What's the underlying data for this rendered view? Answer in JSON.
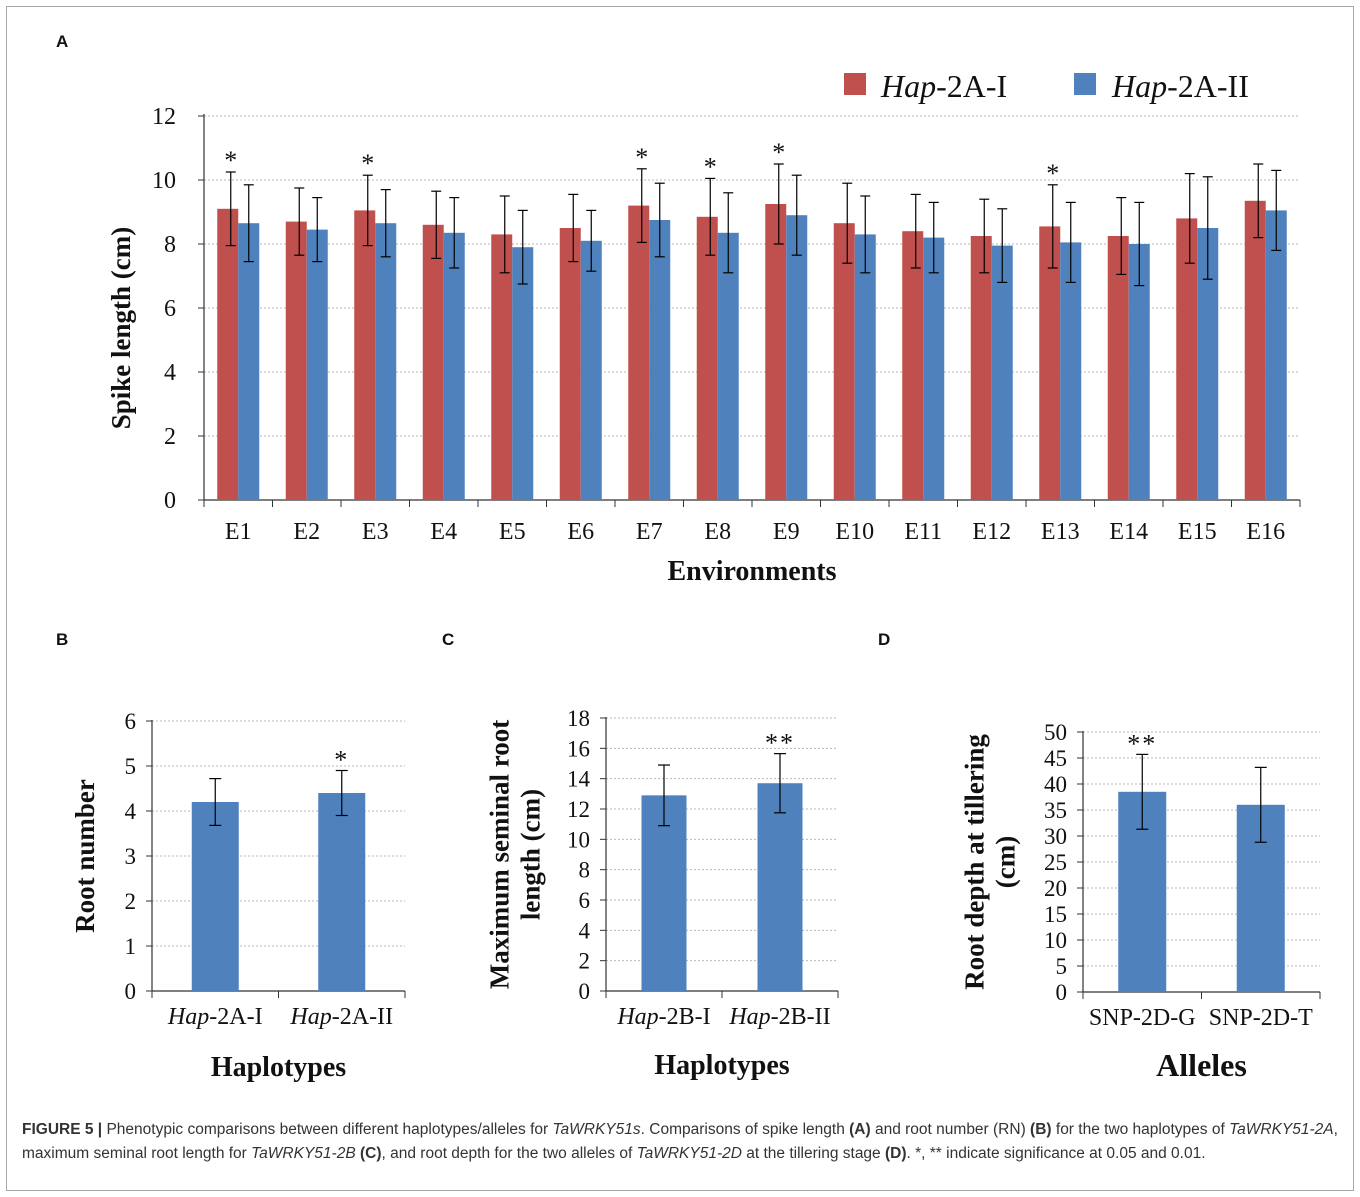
{
  "panels": {
    "A": {
      "letter": "A",
      "chart_data": {
        "type": "bar",
        "categories": [
          "E1",
          "E2",
          "E3",
          "E4",
          "E5",
          "E6",
          "E7",
          "E8",
          "E9",
          "E10",
          "E11",
          "E12",
          "E13",
          "E14",
          "E15",
          "E16"
        ],
        "series": [
          {
            "name_italic": "Hap",
            "name_rest": "-2A-I",
            "color": "#c0504d",
            "values": [
              9.1,
              8.7,
              9.05,
              8.6,
              8.3,
              8.5,
              9.2,
              8.85,
              9.25,
              8.65,
              8.4,
              8.25,
              8.55,
              8.25,
              8.8,
              9.35
            ],
            "errors": [
              1.15,
              1.05,
              1.1,
              1.05,
              1.2,
              1.05,
              1.15,
              1.2,
              1.25,
              1.25,
              1.15,
              1.15,
              1.3,
              1.2,
              1.4,
              1.15
            ]
          },
          {
            "name_italic": "Hap",
            "name_rest": "-2A-II",
            "color": "#4f81bd",
            "values": [
              8.65,
              8.45,
              8.65,
              8.35,
              7.9,
              8.1,
              8.75,
              8.35,
              8.9,
              8.3,
              8.2,
              7.95,
              8.05,
              8.0,
              8.5,
              9.05
            ],
            "errors": [
              1.2,
              1.0,
              1.05,
              1.1,
              1.15,
              0.95,
              1.15,
              1.25,
              1.25,
              1.2,
              1.1,
              1.15,
              1.25,
              1.3,
              1.6,
              1.25
            ]
          }
        ],
        "significance": [
          "*",
          "",
          "*",
          "",
          "",
          "",
          "*",
          "*",
          "*",
          "",
          "",
          "",
          "*",
          "",
          "",
          ""
        ],
        "ylim": [
          0,
          12
        ],
        "yticks": [
          0,
          2,
          4,
          6,
          8,
          10,
          12
        ],
        "ylabel": "Spike length (cm)",
        "xlabel": "Environments",
        "legend_position": "top-right",
        "grid": true
      }
    },
    "B": {
      "letter": "B",
      "chart_data": {
        "type": "bar",
        "categories": [
          {
            "italic": "Hap",
            "rest": "-2A-I"
          },
          {
            "italic": "Hap",
            "rest": "-2A-II"
          }
        ],
        "values": [
          4.2,
          4.4
        ],
        "errors": [
          0.52,
          0.5
        ],
        "significance": [
          "",
          "*"
        ],
        "color": "#4f81bd",
        "ylim": [
          0,
          6
        ],
        "yticks": [
          0,
          1,
          2,
          3,
          4,
          5,
          6
        ],
        "ylabel": [
          "Root number"
        ],
        "xlabel": "Haplotypes",
        "grid": true
      }
    },
    "C": {
      "letter": "C",
      "chart_data": {
        "type": "bar",
        "categories": [
          {
            "italic": "Hap",
            "rest": "-2B-I"
          },
          {
            "italic": "Hap",
            "rest": "-2B-II"
          }
        ],
        "values": [
          12.9,
          13.7
        ],
        "errors": [
          2.0,
          1.95
        ],
        "significance": [
          "",
          "**"
        ],
        "color": "#4f81bd",
        "ylim": [
          0,
          18
        ],
        "yticks": [
          0,
          2,
          4,
          6,
          8,
          10,
          12,
          14,
          16,
          18
        ],
        "ylabel": [
          "Maximum seminal root",
          "length (cm)"
        ],
        "xlabel": "Haplotypes",
        "grid": true
      }
    },
    "D": {
      "letter": "D",
      "chart_data": {
        "type": "bar",
        "categories": [
          {
            "italic": "",
            "rest": "SNP-2D-G"
          },
          {
            "italic": "",
            "rest": "SNP-2D-T"
          }
        ],
        "values": [
          38.5,
          36.0
        ],
        "errors": [
          7.2,
          7.2
        ],
        "significance": [
          "**",
          ""
        ],
        "color": "#4f81bd",
        "ylim": [
          0,
          50
        ],
        "yticks": [
          0,
          5,
          10,
          15,
          20,
          25,
          30,
          35,
          40,
          45,
          50
        ],
        "ylabel": [
          "Root depth at tillering",
          "(cm)"
        ],
        "xlabel": "Alleles",
        "grid": true
      }
    }
  },
  "caption": {
    "figure_label": "FIGURE 5 |",
    "t1": " Phenotypic comparisons between different haplotypes/alleles for ",
    "gene1": "TaWRKY51s",
    "t2": ". Comparisons of spike length ",
    "refA": "(A)",
    "t3": " and root number (RN) ",
    "refB": "(B)",
    "t4": " for the two haplotypes of ",
    "gene2": "TaWRKY51-2A",
    "t5": ", maximum seminal root length for ",
    "gene3": "TaWRKY51-2B",
    "t6": " ",
    "refC": "(C)",
    "t7": ", and root depth for the two alleles of ",
    "gene4": "TaWRKY51-2D",
    "t8": " at the tillering stage ",
    "refD": "(D)",
    "t9": ". *, ** indicate significance at 0.05 and 0.01."
  }
}
